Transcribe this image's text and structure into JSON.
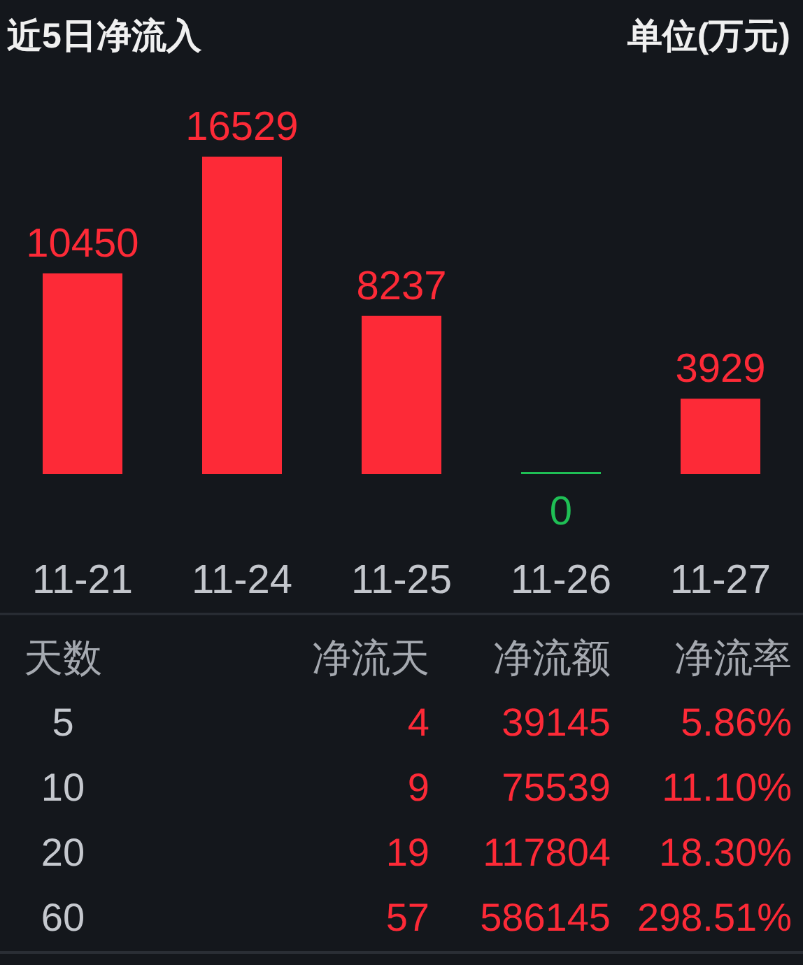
{
  "chart_data": [
    {
      "type": "bar",
      "title": "近5日净流入",
      "annotations": [
        "单位(万元)"
      ],
      "categories": [
        "11-21",
        "11-24",
        "11-25",
        "11-26",
        "11-27"
      ],
      "values": [
        10450,
        16529,
        8237,
        0,
        3929
      ],
      "colors": [
        "#fd2a37",
        "#fd2a37",
        "#fd2a37",
        "#1fbf55",
        "#fd2a37"
      ],
      "data_labels": true
    },
    {
      "type": "other",
      "categories": [
        "天数",
        "净流天",
        "净流额",
        "净流率"
      ],
      "annotations": [
        "5",
        "4",
        "39145",
        "5.86%",
        "10",
        "9",
        "75539",
        "11.10%",
        "20",
        "19",
        "117804",
        "18.30%",
        "60",
        "57",
        "586145",
        "298.51%"
      ],
      "color": "#fd2a37"
    }
  ]
}
